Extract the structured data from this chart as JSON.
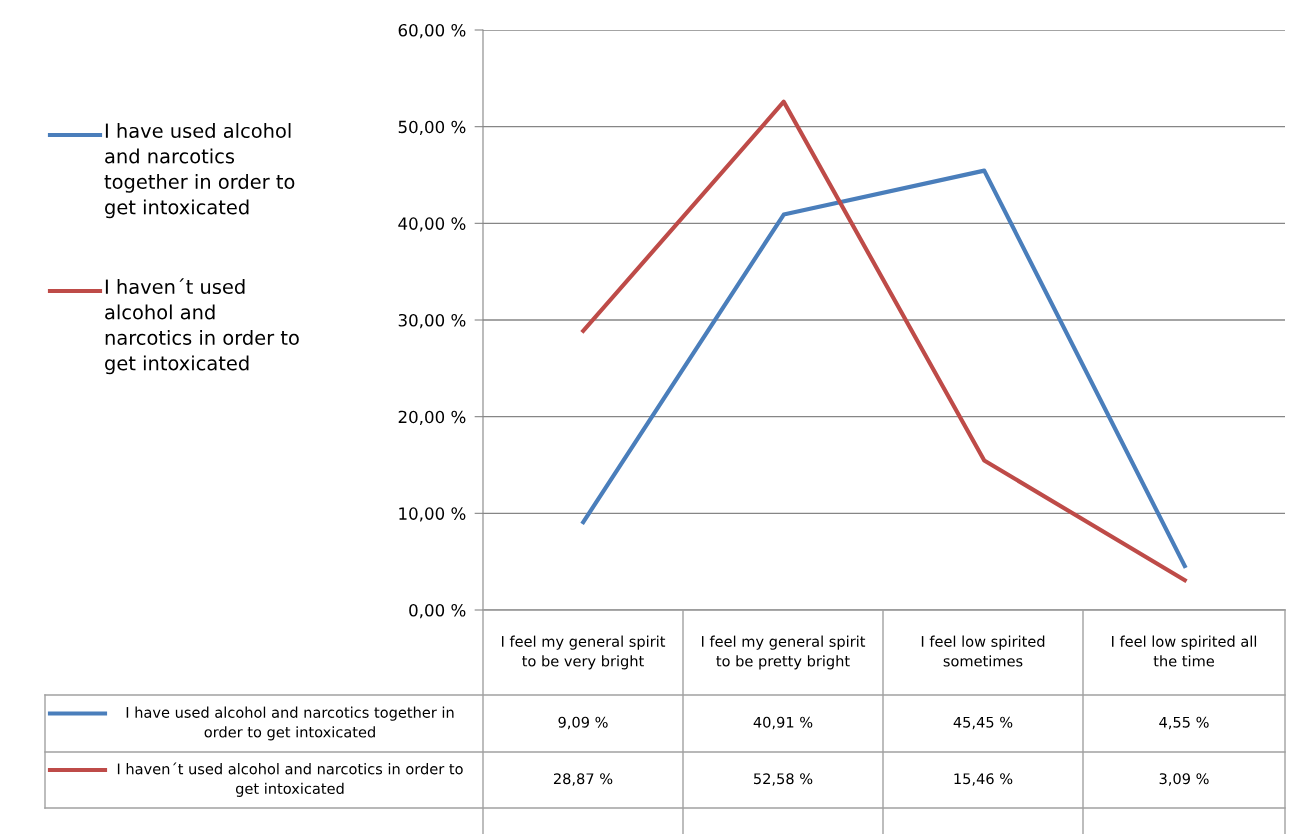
{
  "chart_data": {
    "type": "line",
    "categories": [
      "I feel my general spirit to be very bright",
      "I feel my general spirit to be pretty bright",
      "I feel low spirited sometimes",
      "I feel low spirited all the time"
    ],
    "series": [
      {
        "name": "I have used alcohol and narcotics together in order to get intoxicated",
        "color": "#4a7ebb",
        "values": [
          9.09,
          40.91,
          45.45,
          4.55
        ],
        "value_labels": [
          "9,09 %",
          "40,91 %",
          "45,45 %",
          "4,55 %"
        ]
      },
      {
        "name": "I haven´t used alcohol and narcotics in order to get intoxicated",
        "color": "#be4b48",
        "values": [
          28.87,
          52.58,
          15.46,
          3.09
        ],
        "value_labels": [
          "28,87 %",
          "52,58 %",
          "15,46 %",
          "3,09 %"
        ]
      }
    ],
    "ylim": [
      0,
      60
    ],
    "yticks": [
      {
        "value": 0,
        "label": "0,00 %"
      },
      {
        "value": 10,
        "label": "10,00 %"
      },
      {
        "value": 20,
        "label": "20,00 %"
      },
      {
        "value": 30,
        "label": "30,00 %"
      },
      {
        "value": 40,
        "label": "40,00 %"
      },
      {
        "value": 50,
        "label": "50,00 %"
      },
      {
        "value": 60,
        "label": "60,00 %"
      }
    ],
    "grid": "y",
    "legend": "left",
    "marker": "none",
    "line_style": "solid"
  }
}
